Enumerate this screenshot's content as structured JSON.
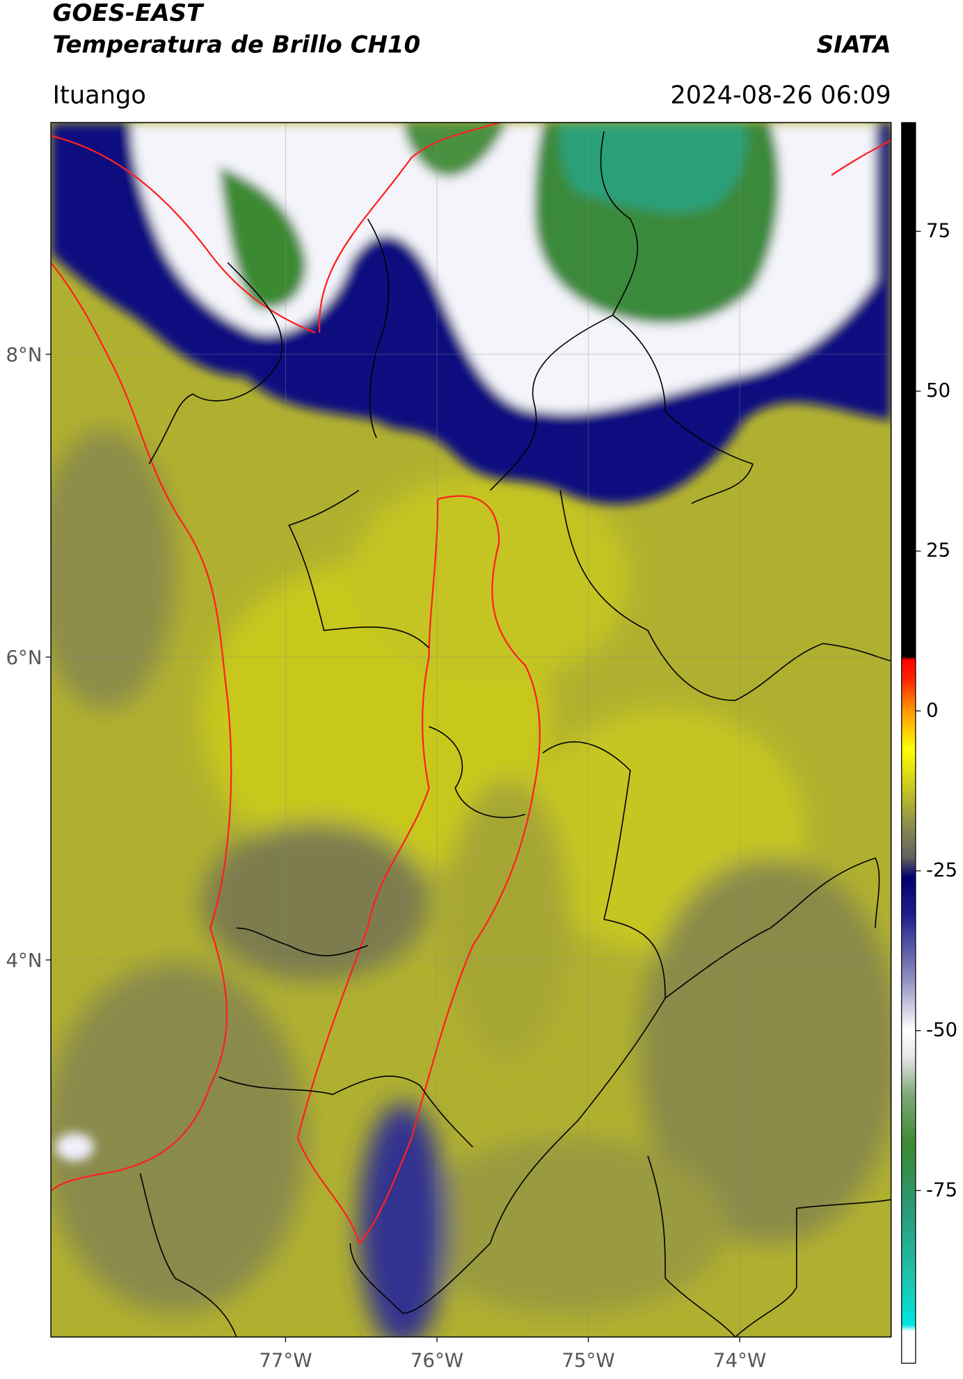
{
  "header": {
    "title": "GOES-EAST",
    "subtitle": "Temperatura de Brillo CH10",
    "brand": "SIATA",
    "location": "Ituango",
    "datetime": "2024-08-26 06:09"
  },
  "map": {
    "lon_range": [
      -78.55,
      -73.0
    ],
    "lat_range": [
      1.51,
      9.53
    ],
    "lat_ticks": [
      {
        "value": 8,
        "label": "8°N"
      },
      {
        "value": 6,
        "label": "6°N"
      },
      {
        "value": 4,
        "label": "4°N"
      }
    ],
    "lon_ticks": [
      {
        "value": -77,
        "label": "77°W"
      },
      {
        "value": -76,
        "label": "76°W"
      },
      {
        "value": -75,
        "label": "75°W"
      },
      {
        "value": -74,
        "label": "74°W"
      }
    ]
  },
  "colorbar": {
    "range": [
      -102,
      92
    ],
    "ticks": [
      75,
      50,
      25,
      0,
      -25,
      -50,
      -75
    ],
    "stops": [
      {
        "value": -102,
        "color": "#ffffff"
      },
      {
        "value": -97,
        "color": "#ffffff"
      },
      {
        "value": -96,
        "color": "#00e5e0"
      },
      {
        "value": -88,
        "color": "#20c0a8"
      },
      {
        "value": -78,
        "color": "#2a9a78"
      },
      {
        "value": -68,
        "color": "#3a8a30"
      },
      {
        "value": -60,
        "color": "#80a878"
      },
      {
        "value": -54,
        "color": "#e8e8e8"
      },
      {
        "value": -50,
        "color": "#ffffff"
      },
      {
        "value": -42,
        "color": "#9090c0"
      },
      {
        "value": -32,
        "color": "#202090"
      },
      {
        "value": -26,
        "color": "#000070"
      },
      {
        "value": -23,
        "color": "#606060"
      },
      {
        "value": -18,
        "color": "#8c8c50"
      },
      {
        "value": -12,
        "color": "#c8c820"
      },
      {
        "value": -6,
        "color": "#ffff00"
      },
      {
        "value": 0,
        "color": "#ff9900"
      },
      {
        "value": 5,
        "color": "#ff2200"
      },
      {
        "value": 8,
        "color": "#ff0000"
      },
      {
        "value": 8.5,
        "color": "#000000"
      },
      {
        "value": 92,
        "color": "#000000"
      }
    ]
  }
}
